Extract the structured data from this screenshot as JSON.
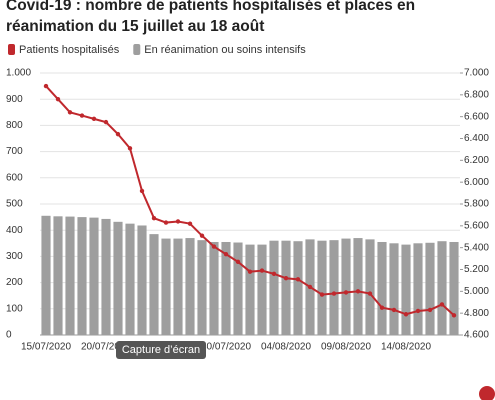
{
  "chart_data": {
    "type": "bar-line",
    "title_lines": [
      "Covid-19 : nombre de patients hospitalisés et places en",
      "réanimation du 15 juillet au 18 août"
    ],
    "tooltip": "Capture d’écran",
    "categories": [
      "15/07/2020",
      null,
      null,
      null,
      null,
      "20/07/2020",
      null,
      null,
      null,
      null,
      "25/07/2020",
      null,
      null,
      null,
      null,
      "30/07/2020",
      null,
      null,
      null,
      null,
      "04/08/2020",
      null,
      null,
      null,
      null,
      "09/08/2020",
      null,
      null,
      null,
      null,
      "14/08/2020",
      null,
      null,
      null,
      null
    ],
    "series": [
      {
        "name": "Patients hospitalisés",
        "type": "line",
        "axis": "y2",
        "color": "#c0282d",
        "values": [
          6880,
          6760,
          6640,
          6610,
          6580,
          6550,
          6440,
          6310,
          5920,
          5670,
          5630,
          5640,
          5620,
          5510,
          5410,
          5340,
          5270,
          5180,
          5190,
          5160,
          5120,
          5110,
          5040,
          4970,
          4980,
          4990,
          5000,
          4980,
          4850,
          4830,
          4790,
          4820,
          4830,
          4880,
          4780
        ]
      },
      {
        "name": "En réanimation ou soins intensifs",
        "type": "bar",
        "color": "#9e9e9e",
        "values": [
          455,
          453,
          452,
          450,
          448,
          443,
          432,
          425,
          418,
          385,
          368,
          368,
          370,
          362,
          355,
          355,
          353,
          345,
          345,
          360,
          360,
          358,
          365,
          360,
          362,
          368,
          370,
          365,
          355,
          350,
          345,
          350,
          352,
          358,
          355
        ]
      }
    ],
    "ylim": [
      0,
      1000
    ],
    "yticks": [
      0,
      100,
      200,
      300,
      400,
      500,
      600,
      700,
      800,
      900,
      {
        "value": 1000,
        "label": "1.000"
      }
    ],
    "y2lim": [
      4600,
      7000
    ],
    "y2ticks": [
      {
        "value": 4600,
        "label": "4.600"
      },
      {
        "value": 4800,
        "label": "4.800"
      },
      {
        "value": 5000,
        "label": "5.000"
      },
      {
        "value": 5200,
        "label": "5.200"
      },
      {
        "value": 5400,
        "label": "5.400"
      },
      {
        "value": 5600,
        "label": "5.600"
      },
      {
        "value": 5800,
        "label": "5.800"
      },
      {
        "value": 6000,
        "label": "6.000"
      },
      {
        "value": 6200,
        "label": "6.200"
      },
      {
        "value": 6400,
        "label": "6.400"
      },
      {
        "value": 6600,
        "label": "6.600"
      },
      {
        "value": 6800,
        "label": "6.800"
      },
      {
        "value": 7000,
        "label": "7.000"
      }
    ],
    "grid": true
  }
}
